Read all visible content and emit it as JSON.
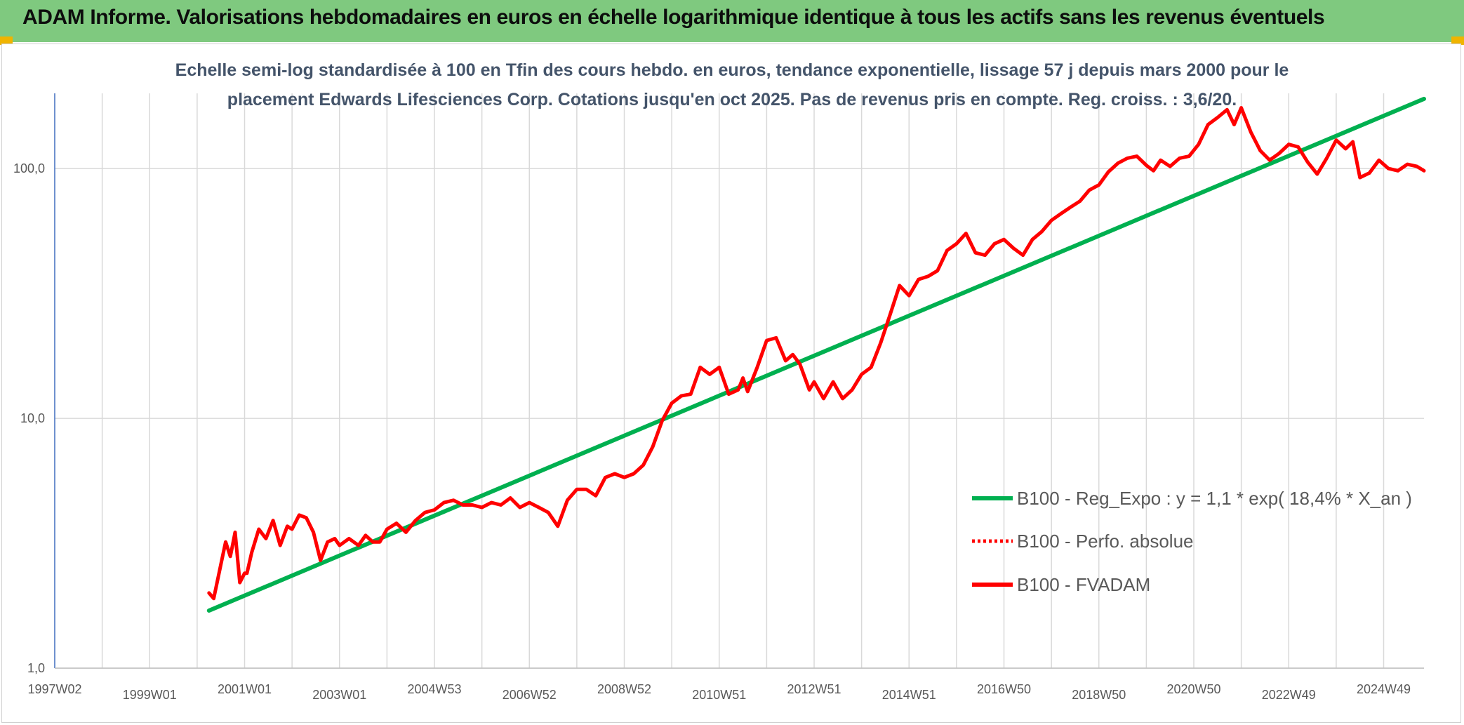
{
  "header": {
    "title": "ADAM Informe. Valorisations hebdomadaires en euros en échelle logarithmique identique à tous les actifs sans les revenus éventuels"
  },
  "colors": {
    "header_bg": "#7fc97f",
    "trend": "#00b050",
    "fvadam": "#ff0000",
    "perfo": "#ff0000",
    "axis": "#4472c4"
  },
  "chart_data": {
    "type": "line",
    "y_scale": "log",
    "title_lines": [
      "Echelle semi-log standardisée à 100 en Tfin des cours hebdo. en euros, tendance exponentielle, lissage 57 j depuis mars 2000 pour le",
      "placement Edwards Lifesciences Corp. Cotations jusqu'en oct 2025. Pas de revenus pris en compte. Reg. croiss. : 3,6/20."
    ],
    "ylim": [
      1,
      200
    ],
    "y_ticks": [
      {
        "value": 1,
        "label": "1,0"
      },
      {
        "value": 10,
        "label": "10,0"
      },
      {
        "value": 100,
        "label": "100,0"
      }
    ],
    "xlim": [
      1997.0,
      2025.85
    ],
    "x_ticks": [
      {
        "year": 1997.0,
        "label": "1997W02"
      },
      {
        "year": 1999.0,
        "label": "1999W01"
      },
      {
        "year": 2001.0,
        "label": "2001W01"
      },
      {
        "year": 2003.0,
        "label": "2003W01"
      },
      {
        "year": 2005.0,
        "label": "2004W53"
      },
      {
        "year": 2007.0,
        "label": "2006W52"
      },
      {
        "year": 2009.0,
        "label": "2008W52"
      },
      {
        "year": 2011.0,
        "label": "2010W51"
      },
      {
        "year": 2013.0,
        "label": "2012W51"
      },
      {
        "year": 2015.0,
        "label": "2014W51"
      },
      {
        "year": 2017.0,
        "label": "2016W50"
      },
      {
        "year": 2019.0,
        "label": "2018W50"
      },
      {
        "year": 2021.0,
        "label": "2020W50"
      },
      {
        "year": 2023.0,
        "label": "2022W49"
      },
      {
        "year": 2025.0,
        "label": "2024W49"
      }
    ],
    "series": [
      {
        "name": "B100 - Reg_Expo : y = 1,1 * exp( 18,4% *  X_an )",
        "style": "solid",
        "x": [
          2000.25,
          2025.85
        ],
        "y": [
          1.7,
          190
        ]
      },
      {
        "name": "B100 - Perfo. absolue",
        "style": "dotted",
        "x": [],
        "y": []
      },
      {
        "name": "B100 - FVADAM",
        "style": "solid",
        "x": [
          2000.25,
          2000.35,
          2000.5,
          2000.6,
          2000.7,
          2000.8,
          2000.9,
          2001.0,
          2001.05,
          2001.15,
          2001.3,
          2001.45,
          2001.6,
          2001.75,
          2001.9,
          2002.0,
          2002.15,
          2002.3,
          2002.45,
          2002.6,
          2002.75,
          2002.9,
          2003.0,
          2003.2,
          2003.4,
          2003.55,
          2003.7,
          2003.85,
          2004.0,
          2004.2,
          2004.4,
          2004.6,
          2004.8,
          2005.0,
          2005.2,
          2005.4,
          2005.6,
          2005.8,
          2006.0,
          2006.2,
          2006.4,
          2006.6,
          2006.8,
          2007.0,
          2007.2,
          2007.4,
          2007.6,
          2007.8,
          2008.0,
          2008.2,
          2008.4,
          2008.6,
          2008.8,
          2009.0,
          2009.2,
          2009.4,
          2009.6,
          2009.8,
          2010.0,
          2010.2,
          2010.4,
          2010.6,
          2010.8,
          2011.0,
          2011.2,
          2011.4,
          2011.5,
          2011.6,
          2011.8,
          2012.0,
          2012.2,
          2012.4,
          2012.55,
          2012.7,
          2012.9,
          2013.0,
          2013.2,
          2013.4,
          2013.6,
          2013.8,
          2014.0,
          2014.2,
          2014.4,
          2014.6,
          2014.8,
          2015.0,
          2015.2,
          2015.4,
          2015.6,
          2015.8,
          2016.0,
          2016.2,
          2016.4,
          2016.6,
          2016.8,
          2017.0,
          2017.2,
          2017.4,
          2017.6,
          2017.8,
          2018.0,
          2018.2,
          2018.4,
          2018.6,
          2018.8,
          2019.0,
          2019.2,
          2019.4,
          2019.6,
          2019.8,
          2020.0,
          2020.15,
          2020.3,
          2020.5,
          2020.7,
          2020.9,
          2021.1,
          2021.3,
          2021.5,
          2021.7,
          2021.85,
          2022.0,
          2022.2,
          2022.4,
          2022.6,
          2022.8,
          2023.0,
          2023.2,
          2023.4,
          2023.6,
          2023.8,
          2024.0,
          2024.2,
          2024.35,
          2024.5,
          2024.7,
          2024.9,
          2025.1,
          2025.3,
          2025.5,
          2025.7,
          2025.85
        ],
        "y": [
          2.0,
          1.9,
          2.6,
          3.2,
          2.8,
          3.5,
          2.2,
          2.4,
          2.4,
          2.9,
          3.6,
          3.3,
          3.9,
          3.1,
          3.7,
          3.6,
          4.1,
          4.0,
          3.5,
          2.7,
          3.2,
          3.3,
          3.1,
          3.3,
          3.1,
          3.4,
          3.2,
          3.2,
          3.6,
          3.8,
          3.5,
          3.9,
          4.2,
          4.3,
          4.6,
          4.7,
          4.5,
          4.5,
          4.4,
          4.6,
          4.5,
          4.8,
          4.4,
          4.6,
          4.4,
          4.2,
          3.7,
          4.7,
          5.2,
          5.2,
          4.9,
          5.8,
          6.0,
          5.8,
          6.0,
          6.5,
          7.7,
          9.8,
          11.5,
          12.3,
          12.5,
          16.0,
          15.0,
          16.0,
          12.5,
          13.0,
          14.5,
          12.8,
          16.0,
          20.5,
          21.0,
          17.0,
          18.0,
          16.5,
          13.0,
          14.0,
          12.0,
          14.0,
          12.0,
          13.0,
          15.0,
          16.0,
          20.0,
          26.0,
          34.0,
          31.0,
          36.0,
          37.0,
          39.0,
          47.0,
          50.0,
          55.0,
          46.0,
          45.0,
          50.0,
          52.0,
          48.0,
          45.0,
          52.0,
          56.0,
          62.0,
          66.0,
          70.0,
          74.0,
          82.0,
          86.0,
          97.0,
          105.0,
          110.0,
          112.0,
          103.0,
          98.0,
          108.0,
          102.0,
          110.0,
          112.0,
          125.0,
          150.0,
          160.0,
          172.0,
          150.0,
          175.0,
          140.0,
          118.0,
          108.0,
          115.0,
          125.0,
          122.0,
          106.0,
          95.0,
          110.0,
          130.0,
          120.0,
          128.0,
          92.0,
          96.0,
          108.0,
          100.0,
          98.0,
          104.0,
          102.0,
          98.0
        ]
      }
    ]
  }
}
